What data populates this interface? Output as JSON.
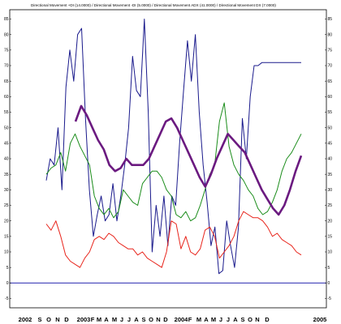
{
  "chart_data": {
    "type": "line",
    "title": "Directional Movement +DI (14.0000) / Directional Movement -DI (5.0000) / Directional Movement ADX (41.0000) / Directional Movement DX (7.0000)",
    "ylim": [
      -8,
      88
    ],
    "y_ticks": [
      -5,
      0,
      5,
      10,
      15,
      20,
      25,
      30,
      35,
      40,
      45,
      50,
      55,
      60,
      65,
      70,
      75,
      80,
      85
    ],
    "x_labels": [
      "2002",
      "S",
      "O",
      "N",
      "D",
      "2003",
      "F",
      "M",
      "A",
      "M",
      "J",
      "J",
      "A",
      "S",
      "O",
      "N",
      "D",
      "2004",
      "F",
      "M",
      "A",
      "M",
      "J",
      "J",
      "A",
      "S",
      "O",
      "N",
      "D",
      "2005"
    ],
    "zero_line": 0,
    "grid": false,
    "colors": {
      "blue": "#1a1a8c",
      "green": "#1a8c1a",
      "red": "#e8241b",
      "purple": "#6b1a80",
      "zero_line": "#2a2ab0"
    },
    "series": [
      {
        "color": "#1a1a8c",
        "x": [
          0,
          1,
          2,
          3,
          4,
          5,
          6,
          7,
          8,
          9,
          10,
          11,
          12,
          13,
          14,
          15,
          16,
          17,
          18,
          19,
          20,
          21,
          22,
          23,
          24,
          25,
          26,
          27,
          28,
          29,
          30,
          31,
          32,
          33,
          34,
          35,
          36,
          37,
          38,
          39,
          40,
          41,
          42,
          43,
          44,
          45,
          46,
          47,
          48,
          49,
          50,
          51,
          52,
          53,
          54,
          55,
          56,
          57,
          58,
          59,
          60,
          61,
          62,
          63,
          64,
          65
        ],
        "values": [
          33,
          40,
          38,
          50,
          30,
          63,
          75,
          65,
          80,
          82,
          53,
          30,
          15,
          22,
          28,
          20,
          22,
          32,
          20,
          28,
          38,
          50,
          73,
          62,
          60,
          85,
          55,
          10,
          25,
          15,
          28,
          12,
          28,
          25,
          45,
          62,
          78,
          65,
          80,
          55,
          38,
          26,
          12,
          18,
          3,
          4,
          20,
          12,
          5,
          18,
          53,
          40,
          60,
          70,
          70,
          71,
          71,
          71,
          71,
          71,
          71,
          71,
          71,
          71,
          71,
          71
        ]
      },
      {
        "color": "#1a8c1a",
        "x": [
          0,
          1,
          2,
          3,
          4,
          5,
          6,
          7,
          8,
          9,
          10,
          11,
          12,
          13,
          14,
          15,
          16,
          17,
          18,
          19,
          20,
          21,
          22,
          23,
          24,
          25,
          26,
          27,
          28,
          29,
          30,
          31,
          32,
          33,
          34,
          35,
          36,
          37,
          38,
          39,
          40,
          41,
          42,
          43,
          44,
          45,
          46,
          47,
          48,
          49,
          50,
          51,
          52,
          53
        ],
        "values": [
          35,
          37,
          38,
          42,
          36,
          45,
          48,
          44,
          41,
          38,
          28,
          24,
          22,
          24,
          21,
          23,
          30,
          28,
          26,
          25,
          32,
          34,
          36,
          36,
          34,
          30,
          28,
          22,
          21,
          23,
          20,
          21,
          25,
          30,
          35,
          38,
          52,
          58,
          44,
          38,
          35,
          33,
          30,
          28,
          24,
          22,
          23,
          26,
          30,
          36,
          40,
          42,
          45,
          48
        ]
      },
      {
        "color": "#e8241b",
        "x": [
          0,
          1,
          2,
          3,
          4,
          5,
          6,
          7,
          8,
          9,
          10,
          11,
          12,
          13,
          14,
          15,
          16,
          17,
          18,
          19,
          20,
          21,
          22,
          23,
          24,
          25,
          26,
          27,
          28,
          29,
          30,
          31,
          32,
          33,
          34,
          35,
          36,
          37,
          38,
          39,
          40,
          41,
          42,
          43,
          44,
          45,
          46,
          47,
          48,
          49,
          50,
          51,
          52,
          53
        ],
        "values": [
          19,
          17,
          20,
          15,
          9,
          7,
          6,
          5,
          8,
          10,
          14,
          15,
          14,
          16,
          15,
          13,
          12,
          11,
          11,
          9,
          10,
          8,
          7,
          6,
          5,
          10,
          20,
          19,
          11,
          15,
          10,
          9,
          11,
          17,
          18,
          15,
          8,
          10,
          12,
          15,
          20,
          23,
          22,
          21,
          21,
          20,
          18,
          15,
          16,
          14,
          13,
          12,
          10,
          9
        ]
      },
      {
        "color": "#6b1a80",
        "x": [
          0,
          1,
          2,
          3,
          4,
          5,
          6,
          7,
          8,
          9,
          10,
          11,
          12,
          13,
          14,
          15,
          16,
          17,
          18,
          19,
          20,
          21,
          22,
          23,
          24,
          25,
          26,
          27,
          28,
          29,
          30,
          31,
          32,
          33,
          34,
          35,
          36,
          37,
          38,
          39,
          40
        ],
        "values": [
          52,
          57,
          54,
          50,
          46,
          43,
          38,
          36,
          37,
          40,
          38,
          38,
          38,
          40,
          44,
          48,
          52,
          53,
          50,
          46,
          42,
          38,
          34,
          31,
          35,
          40,
          44,
          48,
          46,
          44,
          42,
          38,
          34,
          30,
          27,
          24,
          22,
          25,
          30,
          36,
          41
        ]
      }
    ]
  }
}
